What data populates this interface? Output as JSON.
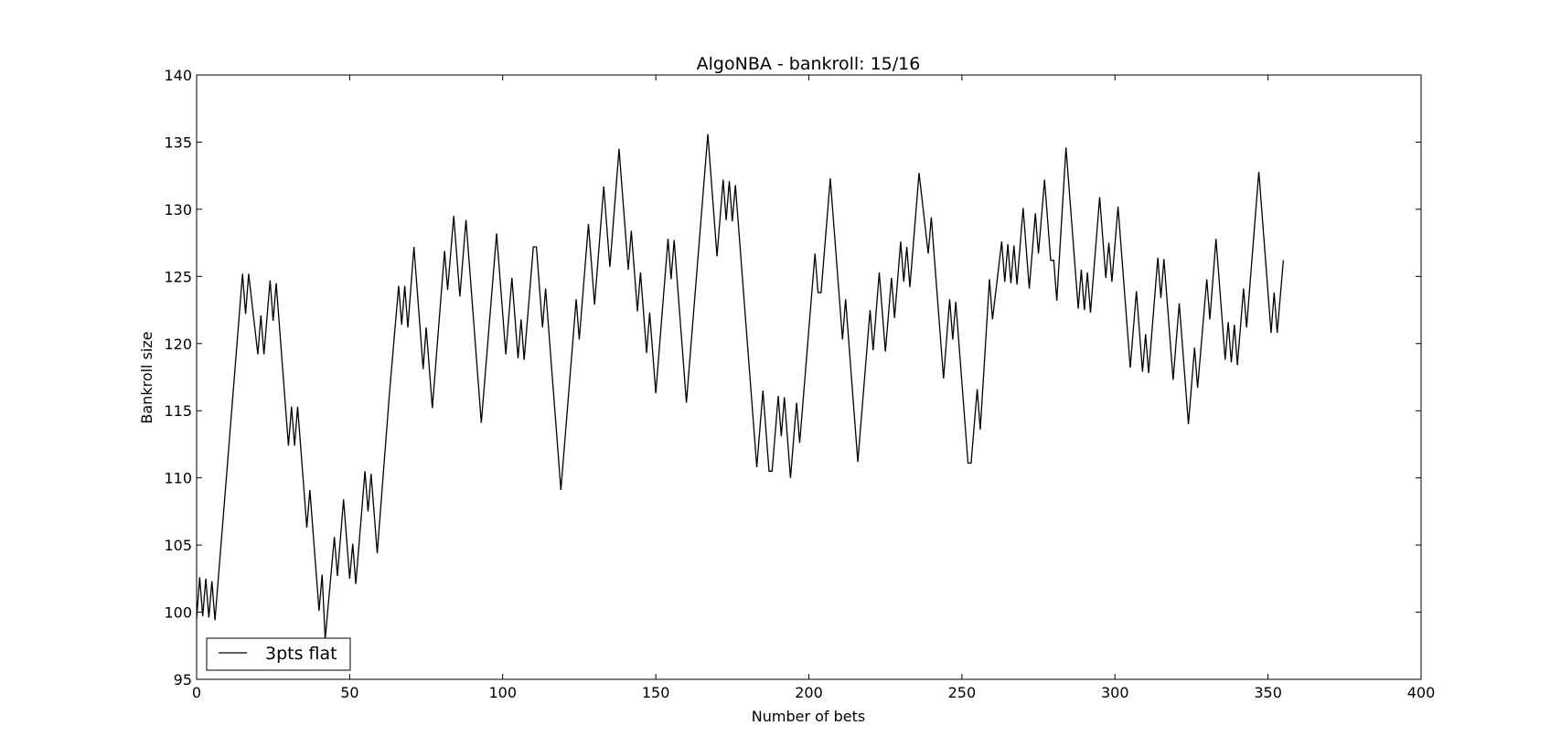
{
  "chart_data": {
    "type": "line",
    "title": "AlgoNBA - bankroll: 15/16",
    "xlabel": "Number of bets",
    "ylabel": "Bankroll size",
    "xlim": [
      0,
      400
    ],
    "ylim": [
      95,
      140
    ],
    "xticks": [
      0,
      50,
      100,
      150,
      200,
      250,
      300,
      350,
      400
    ],
    "yticks": [
      95,
      100,
      105,
      110,
      115,
      120,
      125,
      130,
      135,
      140
    ],
    "grid": false,
    "legend": {
      "placement": "lower-left",
      "entries": [
        "3pts flat"
      ]
    },
    "series": [
      {
        "name": "3pts flat",
        "color": "#000000",
        "points": [
          [
            0,
            99.5
          ],
          [
            1,
            102.6
          ],
          [
            2,
            99.7
          ],
          [
            3,
            102.5
          ],
          [
            4,
            99.6
          ],
          [
            5,
            102.3
          ],
          [
            6,
            99.4
          ],
          [
            10,
            110.8
          ],
          [
            15,
            125.2
          ],
          [
            16,
            122.2
          ],
          [
            17,
            125.2
          ],
          [
            20,
            119.2
          ],
          [
            21,
            122.1
          ],
          [
            22,
            119.2
          ],
          [
            24,
            124.7
          ],
          [
            25,
            121.7
          ],
          [
            26,
            124.5
          ],
          [
            30,
            112.4
          ],
          [
            31,
            115.3
          ],
          [
            32,
            112.4
          ],
          [
            33,
            115.3
          ],
          [
            36,
            106.3
          ],
          [
            37,
            109.1
          ],
          [
            40,
            100.1
          ],
          [
            41,
            102.8
          ],
          [
            42,
            98.0
          ],
          [
            45,
            105.6
          ],
          [
            46,
            102.7
          ],
          [
            48,
            108.4
          ],
          [
            50,
            102.5
          ],
          [
            51,
            105.1
          ],
          [
            52,
            102.1
          ],
          [
            55,
            110.5
          ],
          [
            56,
            107.5
          ],
          [
            57,
            110.3
          ],
          [
            59,
            104.4
          ],
          [
            63,
            116.3
          ],
          [
            66,
            124.3
          ],
          [
            67,
            121.4
          ],
          [
            68,
            124.3
          ],
          [
            69,
            121.2
          ],
          [
            71,
            127.2
          ],
          [
            74,
            118.1
          ],
          [
            75,
            121.2
          ],
          [
            77,
            115.2
          ],
          [
            81,
            126.9
          ],
          [
            82,
            124.0
          ],
          [
            84,
            129.5
          ],
          [
            86,
            123.5
          ],
          [
            88,
            129.2
          ],
          [
            93,
            114.1
          ],
          [
            98,
            128.2
          ],
          [
            101,
            119.2
          ],
          [
            103,
            124.9
          ],
          [
            105,
            118.9
          ],
          [
            106,
            121.8
          ],
          [
            107,
            118.8
          ],
          [
            110,
            127.2
          ],
          [
            111,
            127.2
          ],
          [
            113,
            121.2
          ],
          [
            114,
            124.1
          ],
          [
            119,
            109.1
          ],
          [
            124,
            123.3
          ],
          [
            125,
            120.3
          ],
          [
            128,
            128.9
          ],
          [
            130,
            122.9
          ],
          [
            133,
            131.7
          ],
          [
            135,
            125.7
          ],
          [
            138,
            134.5
          ],
          [
            141,
            125.5
          ],
          [
            142,
            128.4
          ],
          [
            144,
            122.4
          ],
          [
            145,
            125.3
          ],
          [
            147,
            119.3
          ],
          [
            148,
            122.3
          ],
          [
            150,
            116.3
          ],
          [
            154,
            127.8
          ],
          [
            155,
            124.8
          ],
          [
            156,
            127.7
          ],
          [
            160,
            115.6
          ],
          [
            167,
            135.6
          ],
          [
            170,
            126.5
          ],
          [
            172,
            132.2
          ],
          [
            173,
            129.2
          ],
          [
            174,
            132.1
          ],
          [
            175,
            129.1
          ],
          [
            176,
            131.8
          ],
          [
            183,
            110.8
          ],
          [
            185,
            116.5
          ],
          [
            187,
            110.5
          ],
          [
            188,
            110.5
          ],
          [
            190,
            116.1
          ],
          [
            191,
            113.1
          ],
          [
            192,
            116.0
          ],
          [
            194,
            110.0
          ],
          [
            196,
            115.6
          ],
          [
            197,
            112.6
          ],
          [
            202,
            126.7
          ],
          [
            203,
            123.8
          ],
          [
            204,
            123.8
          ],
          [
            207,
            132.3
          ],
          [
            211,
            120.3
          ],
          [
            212,
            123.3
          ],
          [
            216,
            111.2
          ],
          [
            220,
            122.5
          ],
          [
            221,
            119.5
          ],
          [
            223,
            125.3
          ],
          [
            225,
            119.4
          ],
          [
            227,
            124.9
          ],
          [
            228,
            121.9
          ],
          [
            230,
            127.6
          ],
          [
            231,
            124.6
          ],
          [
            232,
            127.2
          ],
          [
            233,
            124.2
          ],
          [
            236,
            132.7
          ],
          [
            239,
            126.7
          ],
          [
            240,
            129.4
          ],
          [
            244,
            117.4
          ],
          [
            246,
            123.3
          ],
          [
            247,
            120.3
          ],
          [
            248,
            123.1
          ],
          [
            252,
            111.1
          ],
          [
            253,
            111.1
          ],
          [
            255,
            116.6
          ],
          [
            256,
            113.6
          ],
          [
            259,
            124.8
          ],
          [
            260,
            121.8
          ],
          [
            263,
            127.6
          ],
          [
            264,
            124.6
          ],
          [
            265,
            127.4
          ],
          [
            266,
            124.5
          ],
          [
            267,
            127.3
          ],
          [
            268,
            124.4
          ],
          [
            270,
            130.1
          ],
          [
            272,
            124.1
          ],
          [
            274,
            129.7
          ],
          [
            275,
            126.7
          ],
          [
            277,
            132.2
          ],
          [
            279,
            126.2
          ],
          [
            280,
            126.2
          ],
          [
            281,
            123.2
          ],
          [
            284,
            134.6
          ],
          [
            288,
            122.6
          ],
          [
            289,
            125.5
          ],
          [
            290,
            122.5
          ],
          [
            291,
            125.3
          ],
          [
            292,
            122.3
          ],
          [
            295,
            130.9
          ],
          [
            297,
            124.9
          ],
          [
            298,
            127.5
          ],
          [
            299,
            124.6
          ],
          [
            301,
            130.2
          ],
          [
            305,
            118.2
          ],
          [
            307,
            123.9
          ],
          [
            309,
            117.9
          ],
          [
            310,
            120.7
          ],
          [
            311,
            117.8
          ],
          [
            314,
            126.4
          ],
          [
            315,
            123.4
          ],
          [
            316,
            126.3
          ],
          [
            319,
            117.3
          ],
          [
            321,
            123.0
          ],
          [
            324,
            114.0
          ],
          [
            326,
            119.7
          ],
          [
            327,
            116.7
          ],
          [
            330,
            124.8
          ],
          [
            331,
            121.8
          ],
          [
            333,
            127.8
          ],
          [
            336,
            118.8
          ],
          [
            337,
            121.6
          ],
          [
            338,
            118.6
          ],
          [
            339,
            121.4
          ],
          [
            340,
            118.4
          ],
          [
            342,
            124.1
          ],
          [
            343,
            121.2
          ],
          [
            347,
            132.8
          ],
          [
            351,
            120.8
          ],
          [
            352,
            123.8
          ],
          [
            353,
            120.8
          ],
          [
            355,
            126.2
          ]
        ]
      }
    ]
  }
}
